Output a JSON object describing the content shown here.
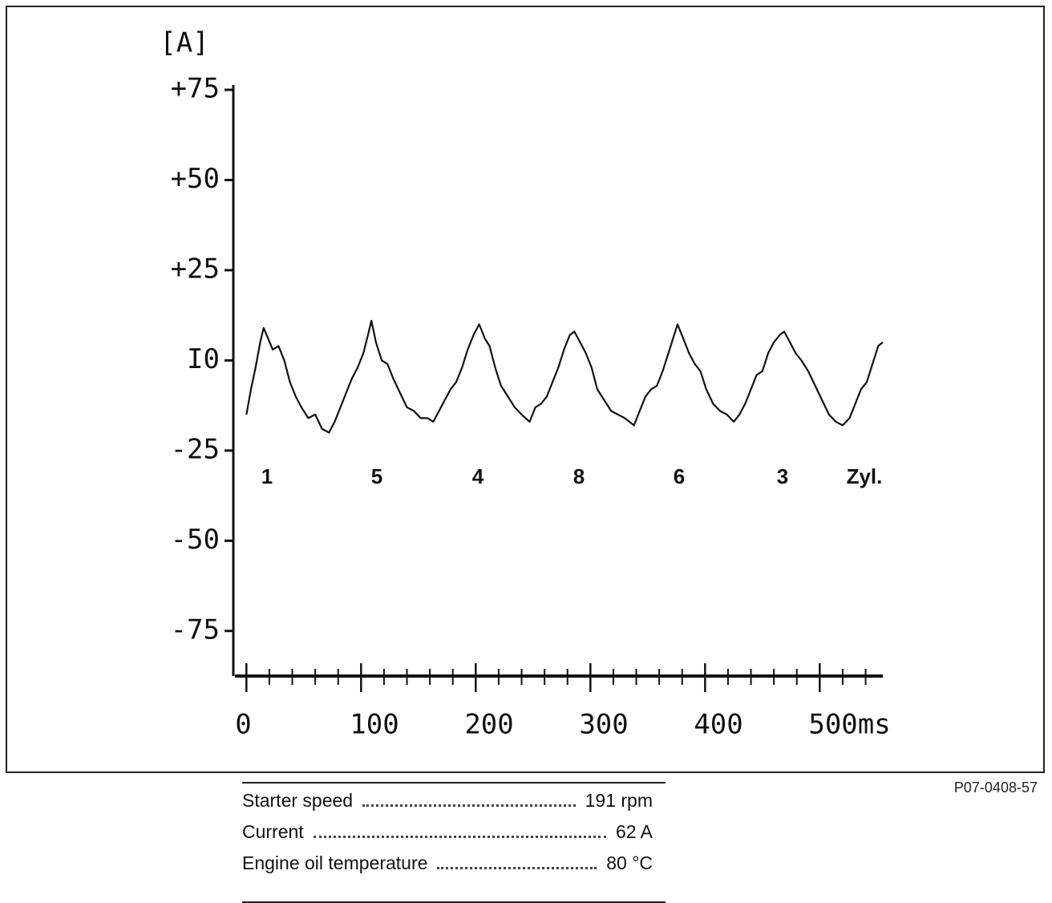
{
  "chart_data": {
    "type": "line",
    "y_label": "[A]",
    "ylim": [
      -87.5,
      75
    ],
    "yticks": [
      {
        "value": 75,
        "label": "+75"
      },
      {
        "value": 50,
        "label": "+50"
      },
      {
        "value": 25,
        "label": "+25"
      },
      {
        "value": 0,
        "label": "I0"
      },
      -25,
      -50,
      -75
    ],
    "xlim": [
      -10,
      555
    ],
    "xticks": [
      0,
      100,
      200,
      300,
      400,
      {
        "value": 500,
        "label": "500ms"
      }
    ],
    "xminorticks": [
      20,
      40,
      60,
      80,
      120,
      140,
      160,
      180,
      220,
      240,
      260,
      280,
      320,
      340,
      360,
      380,
      420,
      440,
      460,
      480,
      520,
      540
    ],
    "annotations": [
      "1",
      "5",
      "4",
      "8",
      "6",
      "3",
      "Zyl."
    ],
    "series": [
      {
        "color": "#111111",
        "x": [
          0,
          4,
          8,
          12,
          15,
          19,
          23,
          28,
          33,
          38,
          43,
          48,
          54,
          60,
          66,
          72,
          77,
          82,
          87,
          92,
          97,
          102,
          106,
          109,
          113,
          118,
          123,
          128,
          134,
          140,
          146,
          152,
          158,
          163,
          168,
          173,
          178,
          183,
          188,
          193,
          198,
          203,
          208,
          212,
          217,
          222,
          228,
          234,
          240,
          247,
          252,
          257,
          262,
          267,
          272,
          277,
          282,
          286,
          291,
          296,
          301,
          306,
          312,
          318,
          324,
          330,
          338,
          343,
          348,
          353,
          358,
          363,
          368,
          373,
          376,
          381,
          386,
          391,
          396,
          401,
          407,
          413,
          419,
          425,
          430,
          435,
          440,
          445,
          450,
          455,
          460,
          465,
          469,
          474,
          479,
          484,
          490,
          496,
          502,
          508,
          514,
          520,
          526,
          531,
          536,
          541,
          546,
          551,
          555
        ],
        "values": [
          -15,
          -8,
          -2,
          5,
          9,
          6,
          3,
          4,
          0,
          -6,
          -10,
          -13,
          -16,
          -15,
          -19,
          -20,
          -17,
          -13,
          -9,
          -5,
          -2,
          2,
          7,
          11,
          5,
          0,
          -1,
          -5,
          -9,
          -13,
          -14,
          -16,
          -16,
          -17,
          -14,
          -11,
          -8,
          -6,
          -2,
          3,
          7,
          10,
          6,
          4,
          -2,
          -7,
          -10,
          -13,
          -15,
          -17,
          -13,
          -12,
          -10,
          -6,
          -2,
          3,
          7,
          8,
          5,
          2,
          -2,
          -8,
          -11,
          -14,
          -15,
          -16,
          -18,
          -14,
          -10,
          -8,
          -7,
          -3,
          2,
          7,
          10,
          6,
          2,
          -1,
          -3,
          -8,
          -12,
          -14,
          -15,
          -17,
          -15,
          -12,
          -8,
          -4,
          -3,
          2,
          5,
          7,
          8,
          5,
          2,
          0,
          -3,
          -7,
          -11,
          -15,
          -17,
          -18,
          -16,
          -12,
          -8,
          -6,
          -1,
          4,
          5
        ]
      }
    ]
  },
  "info": [
    {
      "label": "Starter speed",
      "value": "191 rpm"
    },
    {
      "label": "Current",
      "value": "62 A"
    },
    {
      "label": "Engine oil temperature",
      "value": "80 °C"
    }
  ],
  "code": "P07-0408-57"
}
